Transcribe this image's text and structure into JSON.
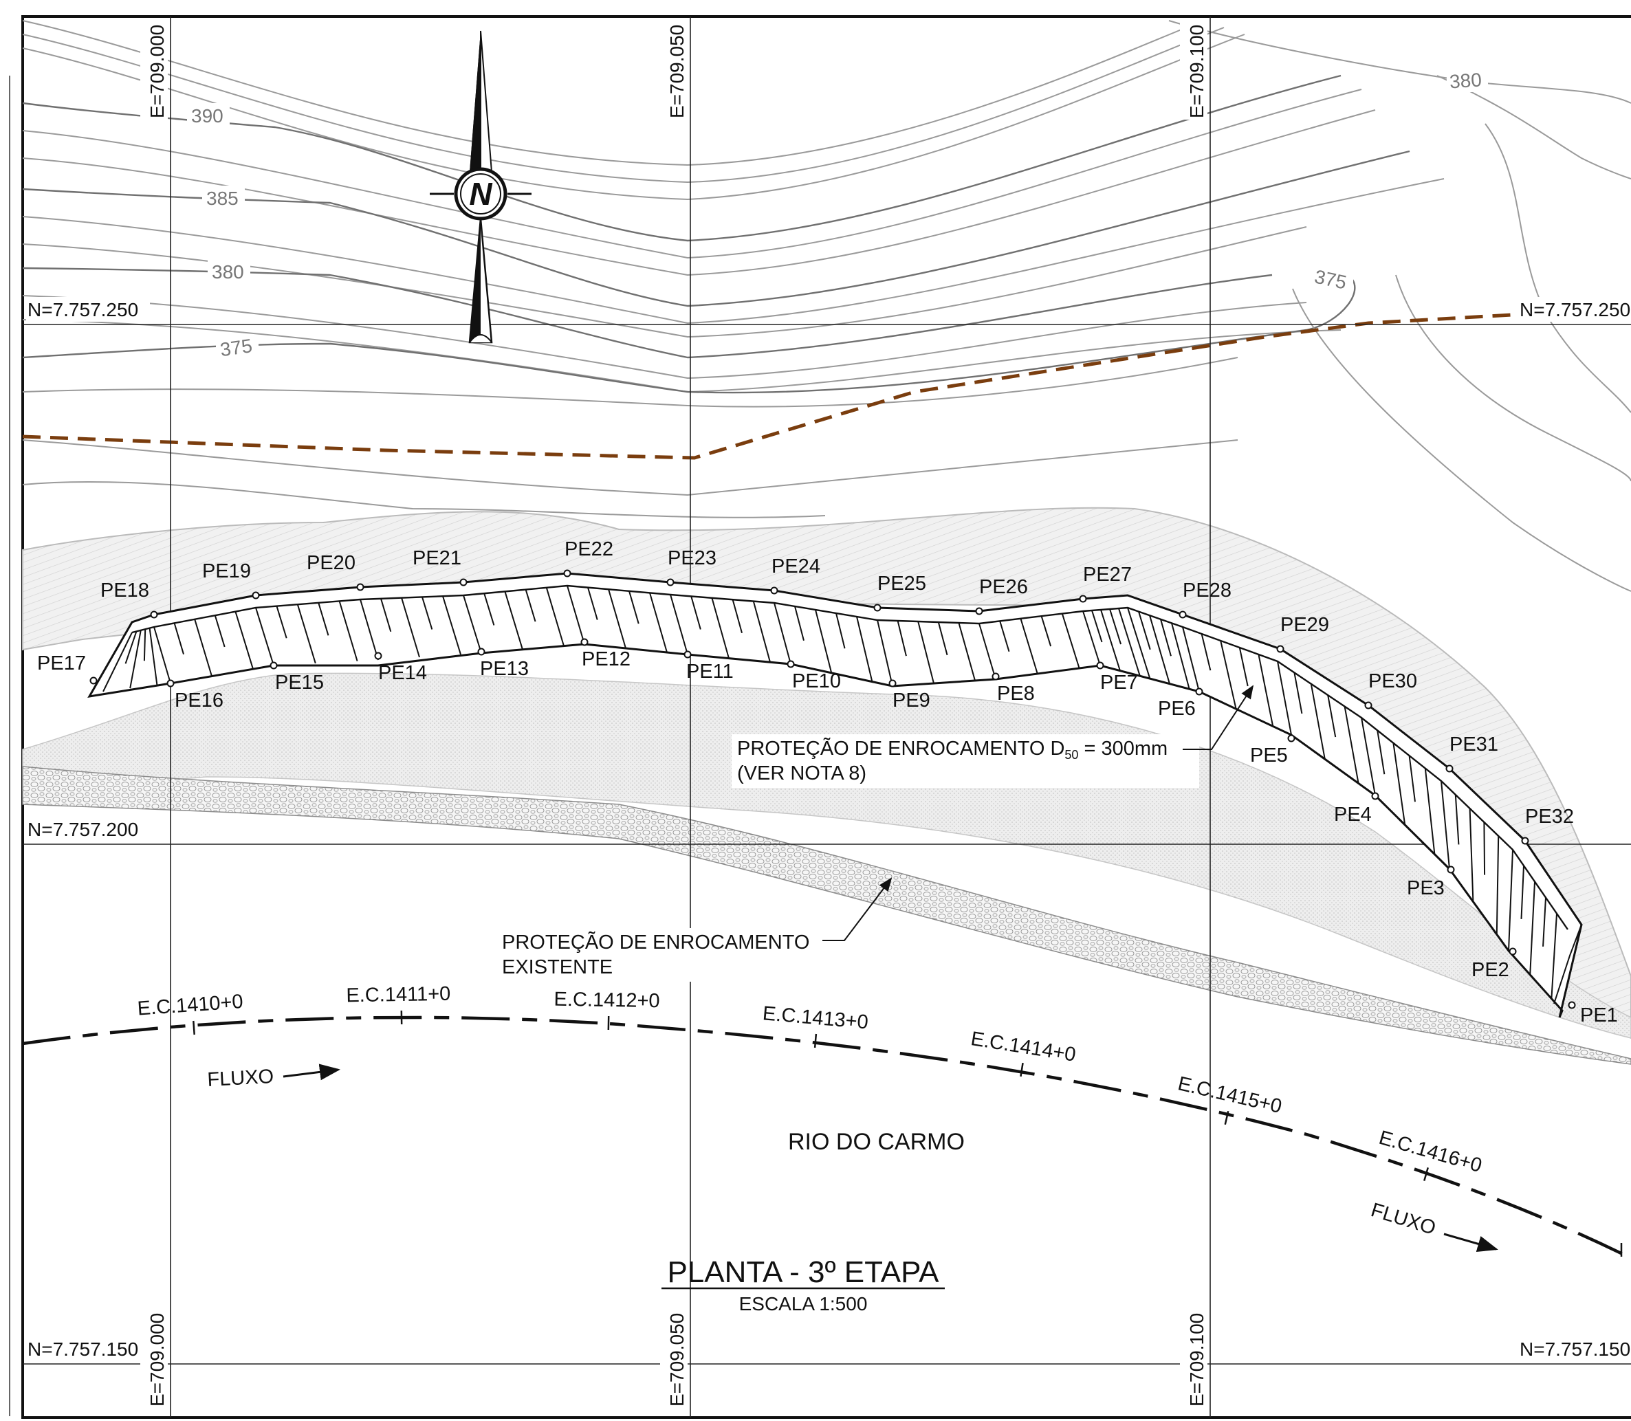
{
  "grid": {
    "easting_labels": [
      "E=709.000",
      "E=709.050",
      "E=709.100"
    ],
    "northing_labels": [
      "N=7.757.250",
      "N=7.757.200",
      "N=7.757.150"
    ]
  },
  "contours": [
    "390",
    "385",
    "380",
    "375"
  ],
  "contour_labels_right": [
    "380",
    "375"
  ],
  "north_arrow": {
    "letter": "N",
    "icon": "north-arrow-icon"
  },
  "protection_points_outer": [
    "PE17",
    "PE18",
    "PE19",
    "PE20",
    "PE21",
    "PE22",
    "PE23",
    "PE24",
    "PE25",
    "PE26",
    "PE27",
    "PE28",
    "PE29",
    "PE30",
    "PE31",
    "PE32"
  ],
  "protection_points_inner": [
    "PE16",
    "PE15",
    "PE14",
    "PE13",
    "PE12",
    "PE11",
    "PE10",
    "PE9",
    "PE8",
    "PE7",
    "PE6",
    "PE5",
    "PE4",
    "PE3",
    "PE2",
    "PE1"
  ],
  "callouts": {
    "new_protection_line1_pre": "PROTEÇÃO DE ENROCAMENTO D",
    "new_protection_sub": "50",
    "new_protection_line1_post": " = 300mm",
    "new_protection_line2": "(VER NOTA 8)",
    "existing_protection_line1": "PROTEÇÃO DE ENROCAMENTO",
    "existing_protection_line2": "EXISTENTE"
  },
  "stations": [
    "E.C.1410+0",
    "E.C.1411+0",
    "E.C.1412+0",
    "E.C.1413+0",
    "E.C.1414+0",
    "E.C.1415+0",
    "E.C.1416+0"
  ],
  "flow_label": "FLUXO",
  "river_name": "RIO DO CARMO",
  "title": "PLANTA - 3º ETAPA",
  "scale": "ESCALA 1:500",
  "colors": {
    "boundary": "#7a3d0e",
    "ink": "#111111",
    "contour": "#9a9a9a",
    "fill": "#e6e6e6"
  }
}
